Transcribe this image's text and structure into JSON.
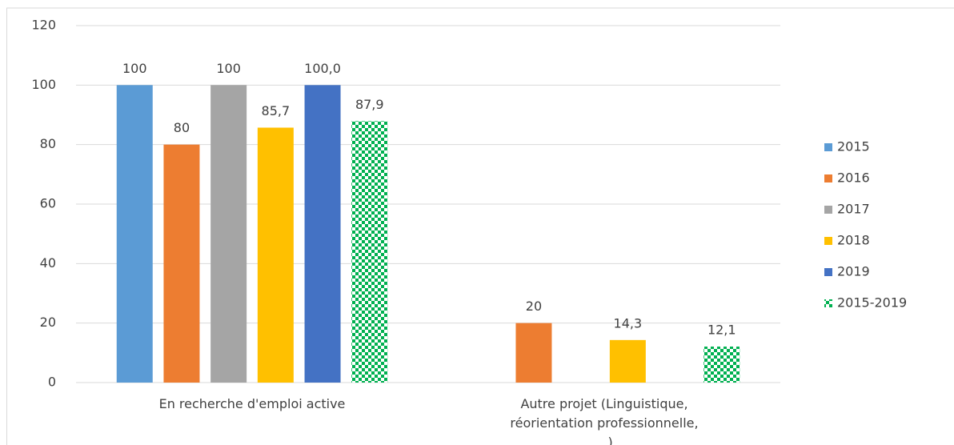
{
  "chart_data": {
    "type": "bar",
    "categories": [
      "En recherche d'emploi active",
      "Autre projet (Linguistique, réorientation professionnelle, ...)"
    ],
    "series": [
      {
        "name": "2015",
        "color": "#5b9bd5",
        "values": [
          100,
          null
        ],
        "value_labels": [
          "100",
          null
        ]
      },
      {
        "name": "2016",
        "color": "#ed7d31",
        "values": [
          80,
          20
        ],
        "value_labels": [
          "80",
          "20"
        ]
      },
      {
        "name": "2017",
        "color": "#a5a5a5",
        "values": [
          100,
          null
        ],
        "value_labels": [
          "100",
          null
        ]
      },
      {
        "name": "2018",
        "color": "#ffc000",
        "values": [
          85.7,
          14.3
        ],
        "value_labels": [
          "85,7",
          "14,3"
        ]
      },
      {
        "name": "2019",
        "color": "#4472c4",
        "values": [
          100,
          null
        ],
        "value_labels": [
          "100,0",
          null
        ]
      },
      {
        "name": "2015-2019",
        "color": "#00b050",
        "pattern": "checkerboard",
        "values": [
          87.9,
          12.1
        ],
        "value_labels": [
          "87,9",
          "12,1"
        ]
      }
    ],
    "ylim": [
      0,
      120
    ],
    "yticks": [
      0,
      20,
      40,
      60,
      80,
      100,
      120
    ],
    "grid": true,
    "legend": "right"
  }
}
